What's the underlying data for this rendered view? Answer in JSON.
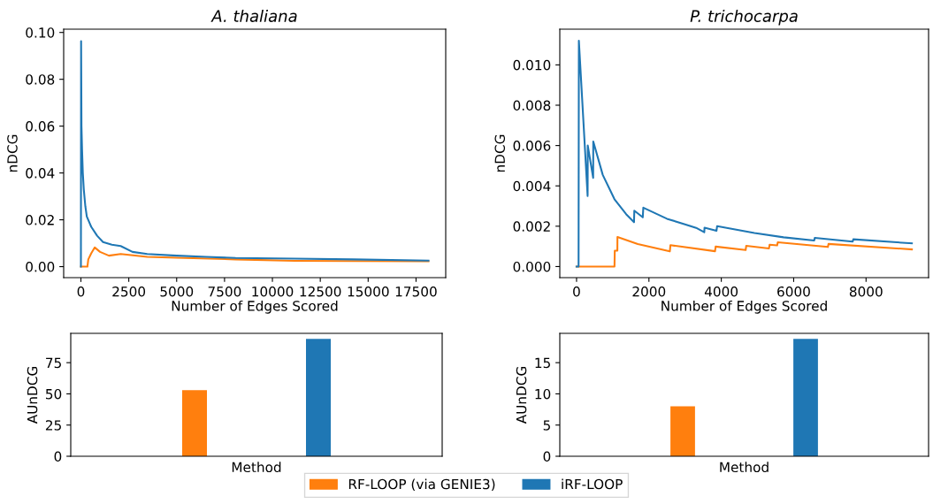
{
  "chart_data": [
    {
      "type": "line",
      "title": "A. thaliana",
      "xlabel": "Number of Edges Scored",
      "ylabel": "nDCG",
      "xlim": [
        -900,
        19050
      ],
      "ylim": [
        -0.0047,
        0.1014
      ],
      "xticks": [
        0,
        2500,
        5000,
        7500,
        10000,
        12500,
        15000,
        17500
      ],
      "yticks": [
        {
          "value": 0,
          "label": "0.00"
        },
        {
          "value": 0.02,
          "label": "0.02"
        },
        {
          "value": 0.04,
          "label": "0.04"
        },
        {
          "value": 0.06,
          "label": "0.06"
        },
        {
          "value": 0.08,
          "label": "0.08"
        },
        {
          "value": 0.1,
          "label": "0.10"
        }
      ],
      "grid": false,
      "series": [
        {
          "color": "#ff7f0e",
          "x": [
            0,
            340,
            385,
            539,
            723,
            1000,
            1462,
            2078,
            3463,
            5002,
            8081,
            11160,
            14237,
            18150
          ],
          "values": [
            0,
            0,
            0.0031,
            0.0057,
            0.0082,
            0.0063,
            0.0047,
            0.0054,
            0.0042,
            0.0038,
            0.0031,
            0.0025,
            0.0024,
            0.0023
          ]
        },
        {
          "color": "#1f77b4",
          "x": [
            0,
            10,
            30,
            60,
            100,
            150,
            231,
            308,
            539,
            847,
            1154,
            1616,
            2078,
            2694,
            3463,
            5002,
            6541,
            8081,
            11160,
            14237,
            18150
          ],
          "values": [
            0,
            0.0963,
            0.06,
            0.05,
            0.04,
            0.033,
            0.0258,
            0.0214,
            0.017,
            0.0132,
            0.0105,
            0.0094,
            0.0088,
            0.0063,
            0.0054,
            0.0047,
            0.0042,
            0.0037,
            0.0034,
            0.0031,
            0.0026
          ]
        }
      ]
    },
    {
      "type": "line",
      "title": "P. trichocarpa",
      "xlabel": "Number of Edges Scored",
      "ylabel": "nDCG",
      "xlim": [
        -463,
        9728
      ],
      "ylim": [
        -0.00055,
        0.01177
      ],
      "xticks": [
        0,
        2000,
        4000,
        6000,
        8000
      ],
      "yticks": [
        {
          "value": 0,
          "label": "0.000"
        },
        {
          "value": 0.002,
          "label": "0.002"
        },
        {
          "value": 0.004,
          "label": "0.004"
        },
        {
          "value": 0.006,
          "label": "0.006"
        },
        {
          "value": 0.008,
          "label": "0.008"
        },
        {
          "value": 0.01,
          "label": "0.010"
        }
      ],
      "grid": false,
      "series": [
        {
          "color": "#ff7f0e",
          "x": [
            0,
            1048,
            1056,
            1128,
            1130,
            1692,
            2578,
            2594,
            3827,
            3843,
            4673,
            4689,
            5318,
            5334,
            5543,
            5560,
            6946,
            6962,
            9267
          ],
          "values": [
            0,
            0,
            0.00079,
            0.00079,
            0.00147,
            0.00112,
            0.00075,
            0.00106,
            0.00076,
            0.00099,
            0.00082,
            0.00103,
            0.0009,
            0.00108,
            0.00105,
            0.0012,
            0.00097,
            0.00112,
            0.00085
          ]
        },
        {
          "color": "#1f77b4",
          "x": [
            0,
            56,
            64,
            306,
            310,
            459,
            462,
            725,
            1048,
            1370,
            1588,
            1596,
            1830,
            1845,
            2498,
            3304,
            3529,
            3537,
            3867,
            3884,
            4915,
            5721,
            6567,
            6583,
            7631,
            7647,
            9267
          ],
          "values": [
            0,
            0,
            0.0112,
            0.0035,
            0.006,
            0.0044,
            0.0062,
            0.00454,
            0.00334,
            0.0026,
            0.0022,
            0.00277,
            0.00244,
            0.00292,
            0.00237,
            0.00192,
            0.0017,
            0.00193,
            0.00177,
            0.002,
            0.00166,
            0.00145,
            0.00129,
            0.00142,
            0.00124,
            0.00135,
            0.00115
          ]
        }
      ]
    },
    {
      "type": "bar",
      "xlabel": "Method",
      "ylabel": "AUnDCG",
      "categories": [
        null,
        null
      ],
      "ylim": [
        0,
        98.5
      ],
      "yticks": [
        0,
        25,
        50,
        75
      ],
      "grid": false,
      "legend": "bottom",
      "series": [
        {
          "name": "RF-LOOP (via GENIE3)",
          "color": "#ff7f0e",
          "values": [
            53,
            null
          ]
        },
        {
          "name": "iRF-LOOP",
          "color": "#1f77b4",
          "values": [
            null,
            94
          ]
        }
      ]
    },
    {
      "type": "bar",
      "xlabel": "Method",
      "ylabel": "AUnDCG",
      "categories": [
        null,
        null
      ],
      "ylim": [
        0,
        19.7
      ],
      "yticks": [
        0,
        5,
        10,
        15
      ],
      "grid": false,
      "series": [
        {
          "color": "#ff7f0e",
          "values": [
            8.0,
            null
          ]
        },
        {
          "color": "#1f77b4",
          "values": [
            null,
            18.8
          ]
        }
      ]
    }
  ]
}
